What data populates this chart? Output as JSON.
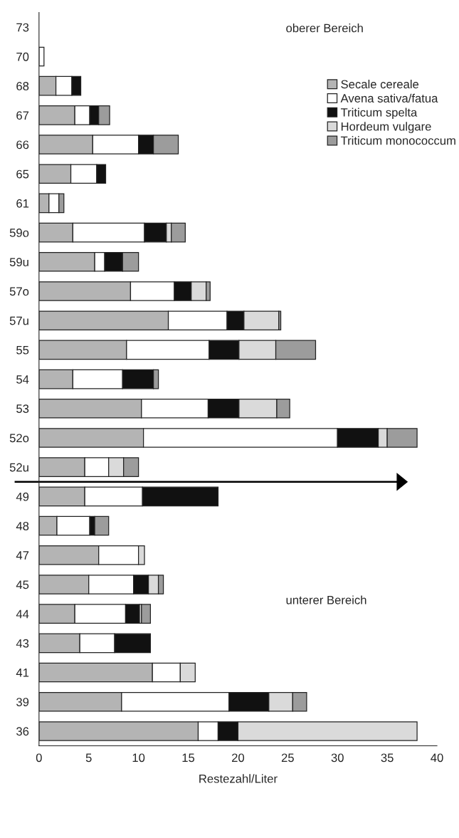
{
  "chart_data": {
    "type": "bar",
    "orientation": "horizontal",
    "stacked": true,
    "categories": [
      "73",
      "70",
      "68",
      "67",
      "66",
      "65",
      "61",
      "59o",
      "59u",
      "57o",
      "57u",
      "55",
      "54",
      "53",
      "52o",
      "52u",
      "49",
      "48",
      "47",
      "45",
      "44",
      "43",
      "41",
      "39",
      "36"
    ],
    "series": [
      {
        "name": "Secale cereale",
        "color": "#b4b4b4",
        "values": [
          0,
          0,
          1.7,
          3.6,
          5.4,
          3.2,
          1.0,
          3.4,
          5.6,
          9.2,
          13.0,
          8.8,
          3.4,
          10.3,
          10.5,
          4.6,
          4.6,
          1.8,
          6.0,
          5.0,
          3.6,
          4.1,
          11.4,
          8.3,
          16.0
        ]
      },
      {
        "name": "Avena sativa/fatua",
        "color": "#ffffff",
        "values": [
          0,
          0.5,
          1.6,
          1.5,
          4.6,
          2.6,
          1.0,
          7.2,
          1.0,
          4.4,
          5.9,
          8.3,
          5.0,
          6.7,
          19.5,
          2.4,
          5.8,
          3.3,
          4.0,
          4.5,
          5.1,
          3.5,
          2.8,
          10.8,
          2.0
        ]
      },
      {
        "name": "Triticum spelta",
        "color": "#111111",
        "values": [
          0,
          0,
          0.9,
          0.9,
          1.5,
          0.9,
          0,
          2.2,
          1.8,
          1.7,
          1.7,
          3.0,
          3.1,
          3.1,
          4.1,
          0,
          7.6,
          0.5,
          0,
          1.5,
          1.4,
          3.6,
          0,
          4.0,
          2.0
        ]
      },
      {
        "name": "Hordeum vulgare",
        "color": "#dadada",
        "values": [
          0,
          0,
          0,
          0,
          0,
          0,
          0,
          0.5,
          0,
          1.5,
          3.5,
          3.7,
          null,
          3.8,
          0.9,
          1.5,
          0,
          0,
          0.6,
          1.0,
          0.2,
          0,
          1.5,
          2.4,
          18.0
        ]
      },
      {
        "name": "Triticum monococcum",
        "color": "#9c9c9c",
        "values": [
          0,
          0,
          0,
          1.1,
          2.5,
          0,
          0.5,
          1.4,
          1.6,
          0.4,
          0.2,
          4.0,
          0.5,
          1.3,
          3.0,
          1.5,
          0,
          1.4,
          0,
          0.5,
          0.9,
          0,
          0,
          1.4,
          0
        ]
      }
    ],
    "xlabel": "Restezahl/Liter",
    "xlim": [
      0,
      40
    ],
    "xticks": [
      0,
      5,
      10,
      15,
      20,
      25,
      30,
      35,
      40
    ],
    "annotations": [
      "oberer Bereich",
      "unterer Bereich"
    ],
    "ref_lines": [
      {
        "axis": "y",
        "value": "52u",
        "color": "#000000"
      }
    ],
    "legend": "top right",
    "grid": false
  }
}
